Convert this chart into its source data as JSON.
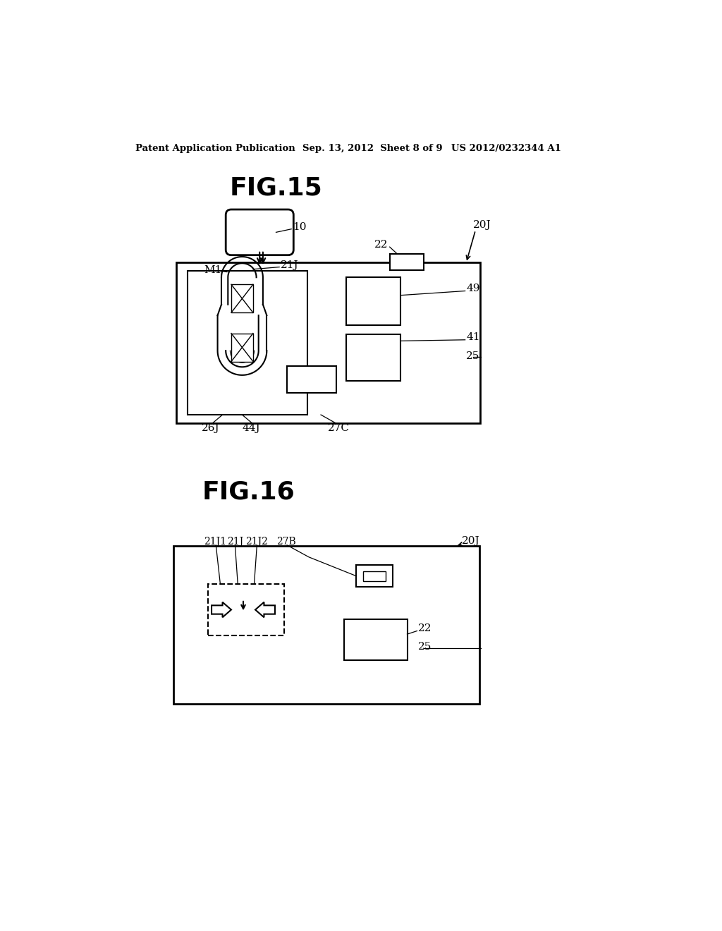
{
  "bg_color": "#ffffff",
  "header_left": "Patent Application Publication",
  "header_mid": "Sep. 13, 2012  Sheet 8 of 9",
  "header_right": "US 2012/0232344 A1",
  "fig15_title": "FIG.15",
  "fig16_title": "FIG.16"
}
